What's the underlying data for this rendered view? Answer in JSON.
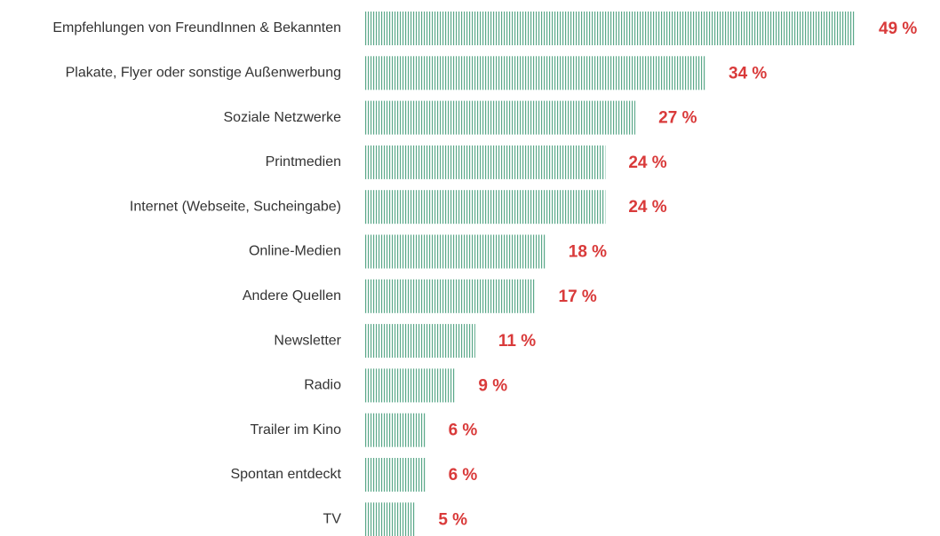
{
  "chart_data": {
    "type": "hbar",
    "categories": [
      "Empfehlungen von FreundInnen & Bekannten",
      "Plakate, Flyer oder sonstige Außenwerbung",
      "Soziale Netzwerke",
      "Printmedien",
      "Internet (Webseite, Sucheingabe)",
      "Online-Medien",
      "Andere Quellen",
      "Newsletter",
      "Radio",
      "Trailer im Kino",
      "Spontan entdeckt",
      "TV"
    ],
    "values": [
      49,
      34,
      27,
      24,
      24,
      18,
      17,
      11,
      9,
      6,
      6,
      5
    ],
    "value_labels": [
      "49 %",
      "34 %",
      "27 %",
      "24 %",
      "24 %",
      "18 %",
      "17 %",
      "11 %",
      "9 %",
      "6 %",
      "6 %",
      "5 %"
    ],
    "color": "#5aa889",
    "label_color": "#d93a3a"
  }
}
